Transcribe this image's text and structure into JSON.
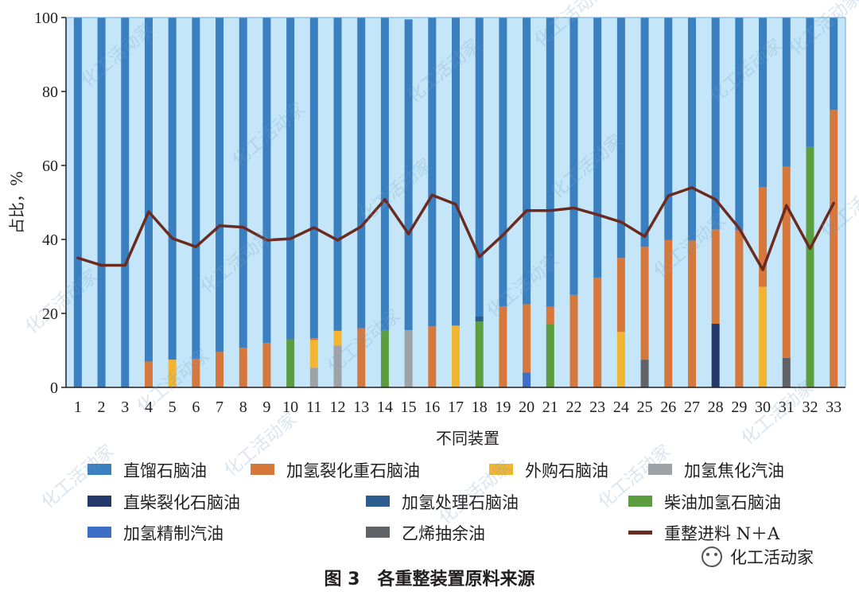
{
  "chart_data": {
    "type": "bar",
    "stacked": true,
    "xlabel": "不同装置",
    "ylabel": "占比，%",
    "ylim": [
      0,
      100
    ],
    "yticks": [
      0,
      20,
      40,
      60,
      80,
      100
    ],
    "categories": [
      "1",
      "2",
      "3",
      "4",
      "5",
      "6",
      "7",
      "8",
      "9",
      "10",
      "11",
      "12",
      "13",
      "14",
      "15",
      "16",
      "17",
      "18",
      "19",
      "20",
      "21",
      "22",
      "23",
      "24",
      "25",
      "26",
      "27",
      "28",
      "29",
      "30",
      "31",
      "32",
      "33"
    ],
    "plot_background": "#c4e6f8",
    "grid": false,
    "legend_position": "bottom",
    "series": [
      {
        "name": "直馏石脑油",
        "color": "#3a7fc0",
        "values": [
          100,
          100,
          100,
          93,
          92.5,
          92.3,
          90.4,
          89.3,
          88,
          87,
          86.7,
          84.7,
          84,
          84.5,
          84,
          83.5,
          83.3,
          80.7,
          78.1,
          77.5,
          78.2,
          75,
          70.3,
          65,
          62,
          60.2,
          60.3,
          57.3,
          57.5,
          45.8,
          40.3,
          35,
          25
        ]
      },
      {
        "name": "加氢裂化重石脑油",
        "color": "#d6773b",
        "values": [
          0,
          0,
          0,
          7,
          0,
          7.7,
          9.6,
          10.7,
          12,
          0,
          0.5,
          0,
          16,
          0,
          0,
          16.5,
          0,
          0,
          21.9,
          18.5,
          4.7,
          25,
          29.7,
          20,
          30.5,
          39.8,
          39.7,
          25.5,
          42.5,
          27,
          51.7,
          0,
          75
        ]
      },
      {
        "name": "外购石脑油",
        "color": "#f2b532",
        "values": [
          0,
          0,
          0,
          0,
          7.5,
          0,
          0,
          0,
          0,
          0,
          7.5,
          4,
          0,
          0,
          0,
          0,
          16.7,
          0,
          0,
          0,
          0,
          0,
          0,
          15,
          0,
          0,
          0,
          0,
          0,
          27.2,
          0,
          0,
          0
        ]
      },
      {
        "name": "加氢焦化汽油",
        "color": "#9ea3a8",
        "values": [
          0,
          0,
          0,
          0,
          0,
          0,
          0,
          0,
          0,
          0,
          5.3,
          11.3,
          0,
          0,
          15.5,
          0,
          0,
          0,
          0,
          0,
          0,
          0,
          0,
          0,
          0,
          0,
          0,
          0,
          0,
          0,
          0,
          0,
          0
        ]
      },
      {
        "name": "直柴裂化石脑油",
        "color": "#24386b",
        "values": [
          0,
          0,
          0,
          0,
          0,
          0,
          0,
          0,
          0,
          0,
          0,
          0,
          0,
          0,
          0,
          0,
          0,
          0,
          0,
          0,
          0,
          0,
          0,
          0,
          0,
          0,
          0,
          17.2,
          0,
          0,
          0,
          0,
          0
        ]
      },
      {
        "name": "加氢处理石脑油",
        "color": "#2b5e8e",
        "values": [
          0,
          0,
          0,
          0,
          0,
          0,
          0,
          0,
          0,
          0,
          0,
          0,
          0,
          0,
          0,
          0,
          0,
          1.5,
          0,
          0,
          0,
          0,
          0,
          0,
          0,
          0,
          0,
          0,
          0,
          0,
          0,
          0,
          0
        ]
      },
      {
        "name": "柴油加氢石脑油",
        "color": "#5a9e3f",
        "values": [
          0,
          0,
          0,
          0,
          0,
          0,
          0,
          0,
          0,
          13,
          0,
          0,
          0,
          15.5,
          0,
          0,
          0,
          17.8,
          0,
          0,
          17.1,
          0,
          0,
          0,
          0,
          0,
          0,
          0,
          0,
          0,
          0,
          65,
          0
        ]
      },
      {
        "name": "加氢精制汽油",
        "color": "#3d6fc7",
        "values": [
          0,
          0,
          0,
          0,
          0,
          0,
          0,
          0,
          0,
          0,
          0,
          0,
          0,
          0,
          0,
          0,
          0,
          0,
          0,
          4,
          0,
          0,
          0,
          0,
          0,
          0,
          0,
          0,
          0,
          0,
          0,
          0,
          0
        ]
      },
      {
        "name": "乙烯抽余油",
        "color": "#5f6266",
        "values": [
          0,
          0,
          0,
          0,
          0,
          0,
          0,
          0,
          0,
          0,
          0,
          0,
          0,
          0,
          0,
          0,
          0,
          0,
          0,
          0,
          0,
          0,
          0,
          0,
          7.5,
          0,
          0,
          0,
          0,
          0,
          8,
          0,
          0
        ]
      }
    ],
    "line_series": {
      "name": "重整进料 N＋A",
      "color": "#6b2a1f",
      "values": [
        35,
        33,
        33,
        47.5,
        40.3,
        38,
        43.7,
        43.3,
        39.8,
        40.2,
        43.2,
        39.8,
        43.5,
        50.8,
        41.5,
        52,
        49.5,
        35.3,
        41.2,
        47.8,
        47.8,
        48.5,
        46.7,
        44.7,
        40.8,
        51.8,
        54,
        50.8,
        43,
        31.8,
        49.2,
        37.5,
        49.8
      ]
    },
    "legend_order": [
      "直馏石脑油",
      "加氢裂化重石脑油",
      "外购石脑油",
      "加氢焦化汽油",
      "直柴裂化石脑油",
      "加氢处理石脑油",
      "柴油加氢石脑油",
      "加氢精制汽油",
      "乙烯抽余油",
      "重整进料 N＋A"
    ]
  },
  "caption": "图 3　各重整装置原料来源",
  "watermark": "化工活动家",
  "brand": "化工活动家"
}
